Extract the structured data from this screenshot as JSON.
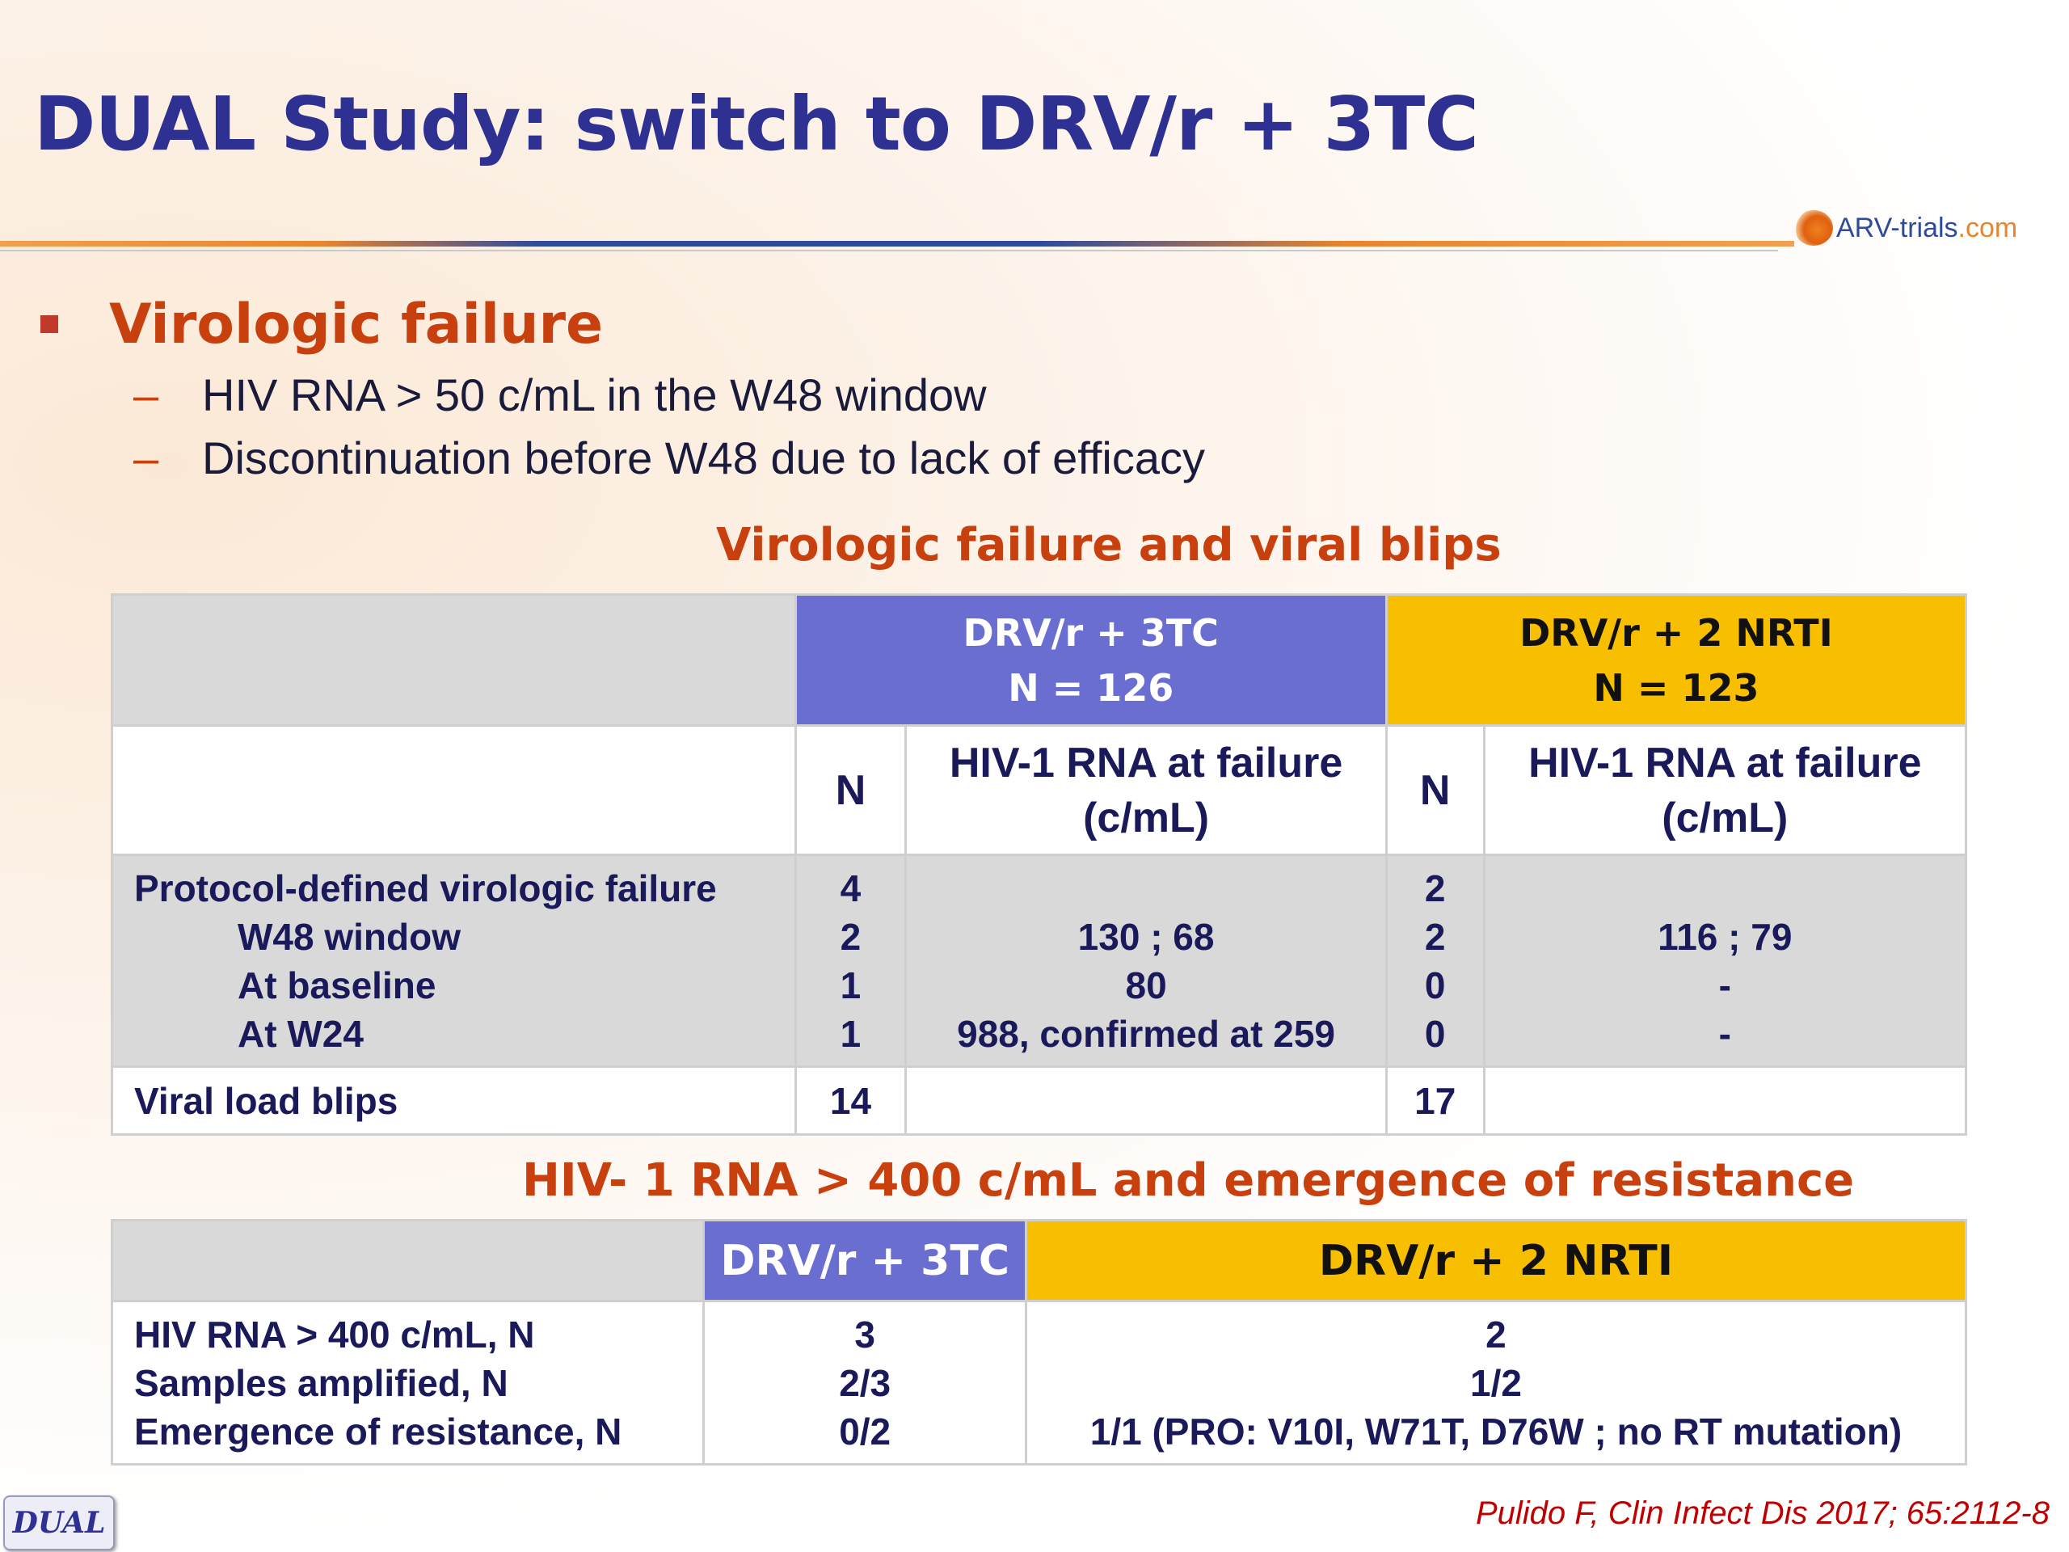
{
  "header": {
    "title": "DUAL Study: switch to DRV/r + 3TC",
    "logo_text": "ARV-trials",
    "logo_suffix": ".com"
  },
  "bullets": {
    "heading": "Virologic failure",
    "items": [
      "HIV RNA > 50 c/mL in the W48 window",
      "Discontinuation before W48 due to lack of efficacy"
    ],
    "dash": "–"
  },
  "table1": {
    "title": "Virologic failure and viral blips",
    "arm1": {
      "name": "DRV/r + 3TC",
      "n": "N = 126"
    },
    "arm2": {
      "name": "DRV/r + 2 NRTI",
      "n": "N = 123"
    },
    "col_n": "N",
    "col_rna_line1": "HIV-1 RNA at failure",
    "col_rna_line2": "(c/mL)",
    "pdvf": {
      "labels": [
        "Protocol-defined virologic failure",
        "W48 window",
        "At baseline",
        "At W24"
      ],
      "arm1_n": [
        "4",
        "2",
        "1",
        "1"
      ],
      "arm1_rna": [
        "",
        "130 ; 68",
        "80",
        "988, confirmed at 259"
      ],
      "arm2_n": [
        "2",
        "2",
        "0",
        "0"
      ],
      "arm2_rna": [
        "",
        "116 ; 79",
        "-",
        "-"
      ]
    },
    "blips": {
      "label": "Viral load blips",
      "arm1_n": "14",
      "arm2_n": "17"
    }
  },
  "table2": {
    "title": "HIV- 1 RNA > 400 c/mL and emergence of resistance",
    "arm1": "DRV/r + 3TC",
    "arm2": "DRV/r + 2 NRTI",
    "labels": [
      "HIV RNA > 400 c/mL, N",
      "Samples amplified, N",
      "Emergence of resistance, N"
    ],
    "arm1_values": [
      "3",
      "2/3",
      "0/2"
    ],
    "arm2_values": [
      "2",
      "1/2",
      "1/1 (PRO: V10I, W71T, D76W ; no RT mutation)"
    ]
  },
  "footer": {
    "badge": "DUAL",
    "citation": "Pulido F, Clin Infect Dis 2017; 65:2112-8"
  },
  "colors": {
    "title": "#2e3192",
    "accent_orange": "#c8400e",
    "arm1_purple": "#6b6ed1",
    "arm2_yellow": "#f8bf00",
    "table_grey": "#d9d9d9",
    "citation_red": "#c00000"
  }
}
